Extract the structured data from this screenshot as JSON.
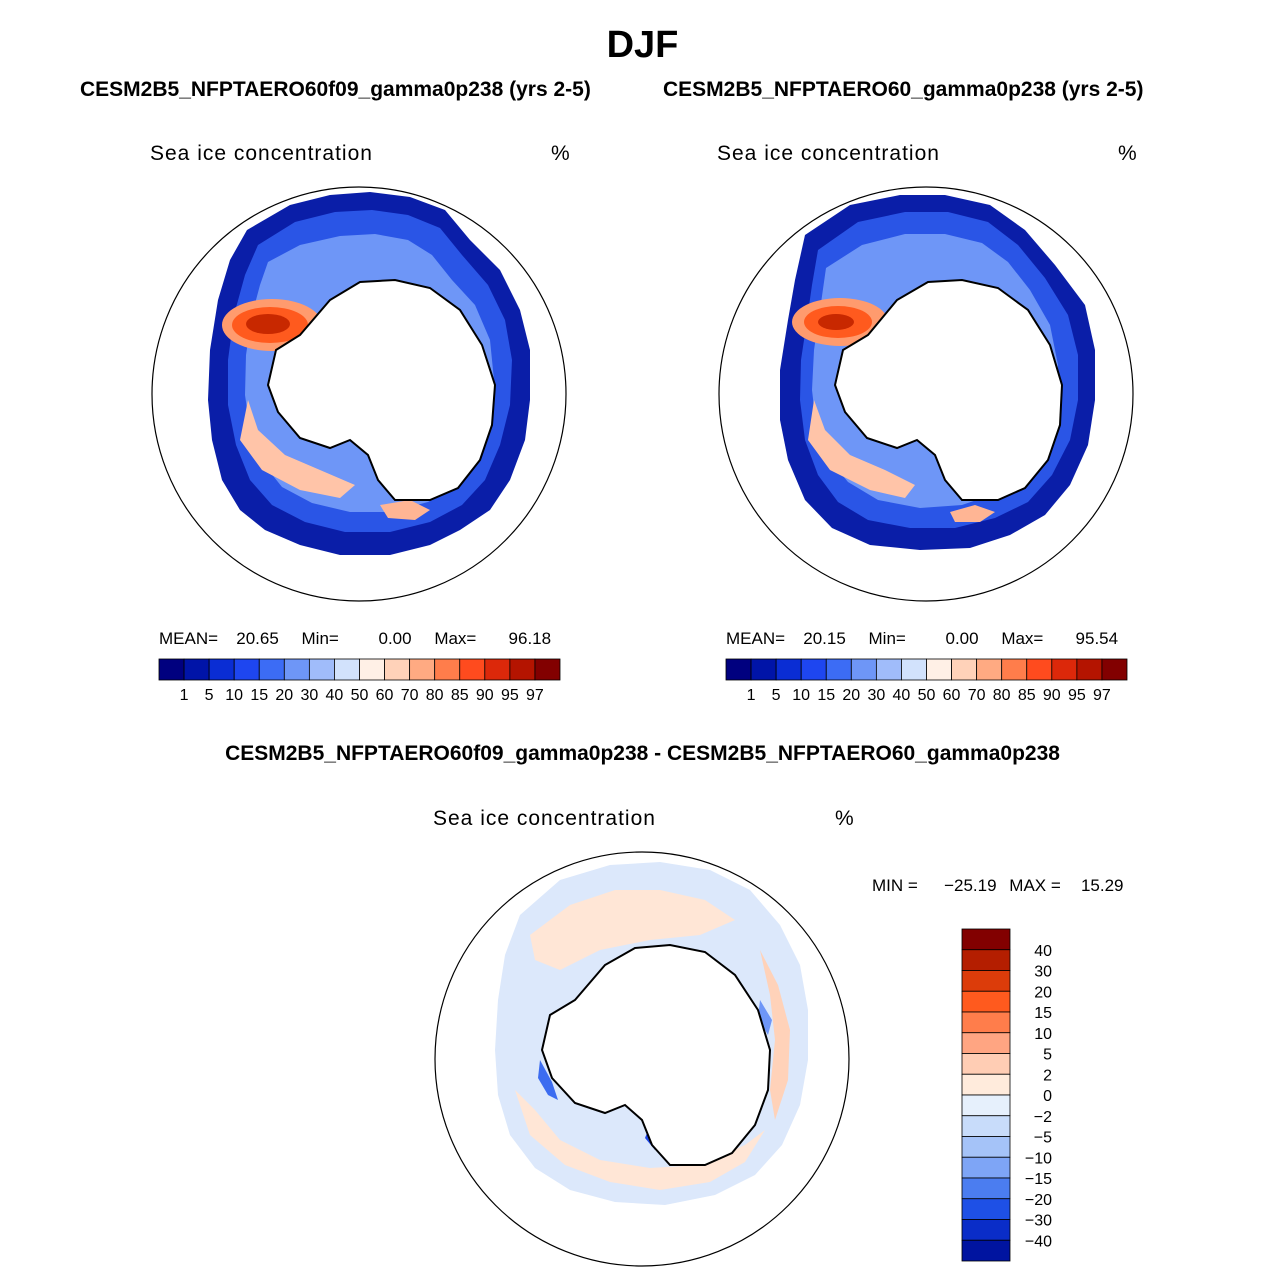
{
  "figure": {
    "season": "DJF",
    "case_a_title": "CESM2B5_NFPTAERO60f09_gamma0p238 (yrs 2-5)",
    "case_b_title": "CESM2B5_NFPTAERO60_gamma0p238 (yrs 2-5)",
    "diff_title": "CESM2B5_NFPTAERO60f09_gamma0p238 - CESM2B5_NFPTAERO60_gamma0p238"
  },
  "chart_data": [
    {
      "type": "heatmap",
      "projection": "south-polar-stereographic",
      "variable": "Sea ice concentration",
      "units": "%",
      "stats": {
        "mean_label": "MEAN=",
        "mean": "20.65",
        "min_label": "Min=",
        "min": "0.00",
        "max_label": "Max=",
        "max": "96.18"
      },
      "colorbar_levels": [
        "1",
        "5",
        "10",
        "15",
        "20",
        "30",
        "40",
        "50",
        "60",
        "70",
        "80",
        "85",
        "90",
        "95",
        "97"
      ],
      "colorbar_colors": [
        "#00007f",
        "#0014a8",
        "#0a2dd4",
        "#1e46f0",
        "#3c6cf5",
        "#6e96f7",
        "#a0bcfa",
        "#d2e2fc",
        "#fff0e6",
        "#ffd2b9",
        "#ffaa82",
        "#ff7d4b",
        "#ff4b1e",
        "#dc280a",
        "#b41400",
        "#820000"
      ]
    },
    {
      "type": "heatmap",
      "projection": "south-polar-stereographic",
      "variable": "Sea ice concentration",
      "units": "%",
      "stats": {
        "mean_label": "MEAN=",
        "mean": "20.15",
        "min_label": "Min=",
        "min": "0.00",
        "max_label": "Max=",
        "max": "95.54"
      },
      "colorbar_levels": [
        "1",
        "5",
        "10",
        "15",
        "20",
        "30",
        "40",
        "50",
        "60",
        "70",
        "80",
        "85",
        "90",
        "95",
        "97"
      ],
      "colorbar_colors": [
        "#00007f",
        "#0014a8",
        "#0a2dd4",
        "#1e46f0",
        "#3c6cf5",
        "#6e96f7",
        "#a0bcfa",
        "#d2e2fc",
        "#fff0e6",
        "#ffd2b9",
        "#ffaa82",
        "#ff7d4b",
        "#ff4b1e",
        "#dc280a",
        "#b41400",
        "#820000"
      ]
    },
    {
      "type": "heatmap",
      "projection": "south-polar-stereographic",
      "variable": "Sea ice concentration",
      "units": "%",
      "stats": {
        "min_label": "MIN =",
        "min": "−25.19",
        "max_label": "MAX =",
        "max": "15.29"
      },
      "colorbar_levels": [
        "40",
        "30",
        "20",
        "15",
        "10",
        "5",
        "2",
        "0",
        "−2",
        "−5",
        "−10",
        "−15",
        "−20",
        "−30",
        "−40"
      ],
      "colorbar_colors": [
        "#820000",
        "#b41e00",
        "#dc3c0a",
        "#ff5a1e",
        "#ff7d4b",
        "#ffa582",
        "#ffcdb4",
        "#ffebdc",
        "#e6f0fc",
        "#c8dcfa",
        "#a5c3f8",
        "#7ea5f6",
        "#4b7df0",
        "#1e50e6",
        "#0a2dc8",
        "#0014a0"
      ]
    }
  ]
}
